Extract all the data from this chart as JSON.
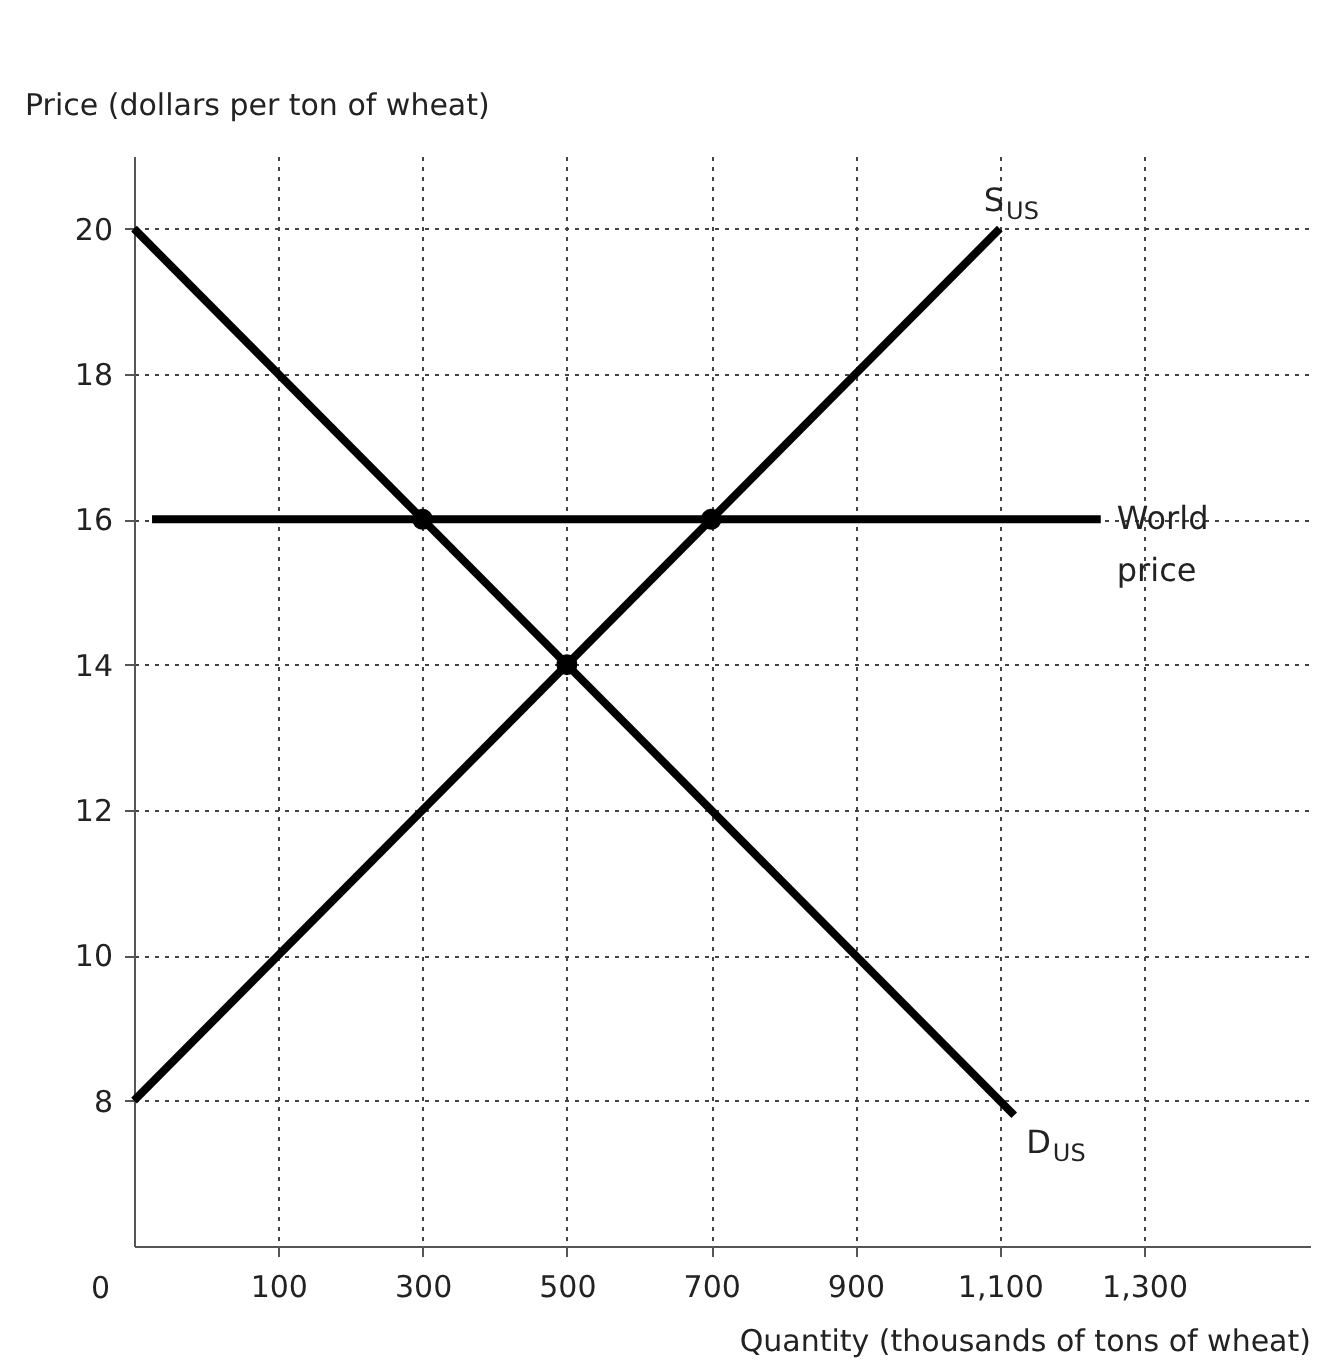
{
  "chart_data": {
    "type": "line",
    "xlabel": "Quantity (thousands of tons of wheat)",
    "ylabel": "Price (dollars per ton of wheat)",
    "xlim": [
      -100,
      1530
    ],
    "ylim": [
      6,
      21
    ],
    "annotations": [
      "0"
    ],
    "xticks": [
      100,
      300,
      500,
      700,
      900,
      {
        "value": 1100,
        "label": "1,100"
      },
      {
        "value": 1300,
        "label": "1,300"
      }
    ],
    "yticks": [
      8,
      10,
      12,
      14,
      16,
      18,
      20
    ],
    "grid": true,
    "series": [
      {
        "name": "S$_{US}$",
        "color": "#000000",
        "x": [
          -100,
          1100
        ],
        "values": [
          8,
          20
        ]
      },
      {
        "name": "D$_{US}$",
        "color": "#000000",
        "x": [
          -100,
          1120
        ],
        "values": [
          20,
          7.8
        ]
      },
      {
        "name": "World price",
        "color": "#000000",
        "x": [
          -75,
          1240
        ],
        "values": [
          16,
          16
        ]
      },
      {
        "type": "scatter",
        "marker": "circle",
        "color": "#000000",
        "x": [
          300,
          700,
          500
        ],
        "values": [
          16,
          16,
          14
        ]
      }
    ]
  }
}
